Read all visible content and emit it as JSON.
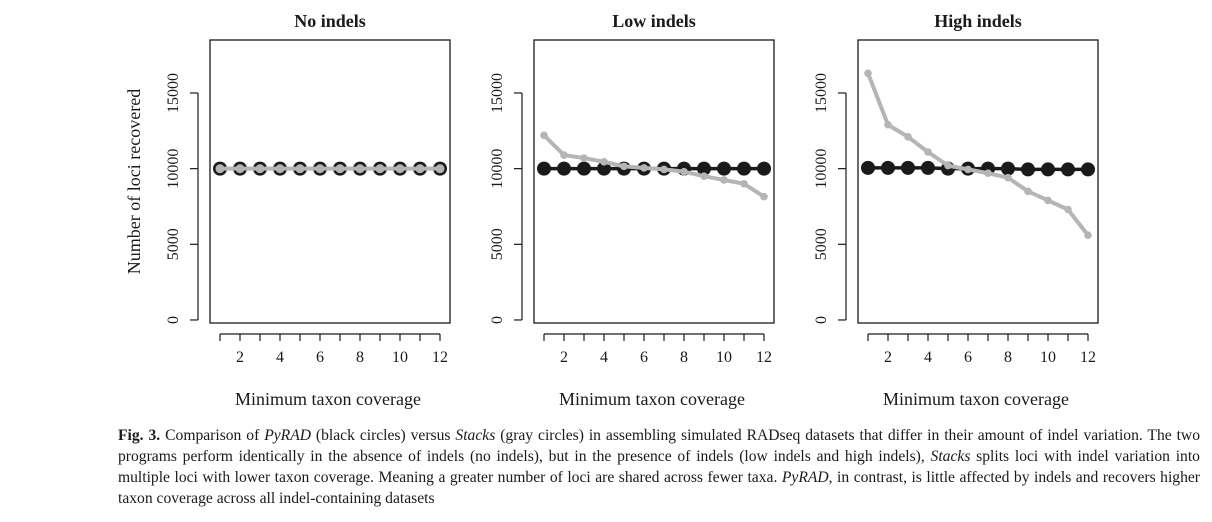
{
  "chart_data": [
    {
      "type": "line",
      "title": "No indels",
      "xlabel": "Minimum taxon coverage",
      "ylabel": "Number of loci recovered",
      "xlim": [
        0.5,
        12.5
      ],
      "ylim": [
        -200,
        18500
      ],
      "x_ticks": [
        2,
        4,
        6,
        8,
        10,
        12
      ],
      "y_ticks": [
        0,
        5000,
        10000,
        15000
      ],
      "x": [
        1,
        2,
        3,
        4,
        5,
        6,
        7,
        8,
        9,
        10,
        11,
        12
      ],
      "grid": false,
      "series": [
        {
          "name": "PyRAD",
          "color": "#1a1a1a",
          "values": [
            10000,
            10000,
            10000,
            10000,
            10000,
            10000,
            10000,
            10000,
            10000,
            10000,
            10000,
            10000
          ]
        },
        {
          "name": "Stacks",
          "color": "#b5b5b5",
          "values": [
            10000,
            10000,
            10000,
            10000,
            10000,
            10000,
            10000,
            10000,
            10000,
            10000,
            10000,
            10000
          ]
        }
      ]
    },
    {
      "type": "line",
      "title": "Low indels",
      "xlabel": "Minimum taxon coverage",
      "ylabel": "",
      "xlim": [
        0.5,
        12.5
      ],
      "ylim": [
        -200,
        18500
      ],
      "x_ticks": [
        2,
        4,
        6,
        8,
        10,
        12
      ],
      "y_ticks": [
        0,
        5000,
        10000,
        15000
      ],
      "x": [
        1,
        2,
        3,
        4,
        5,
        6,
        7,
        8,
        9,
        10,
        11,
        12
      ],
      "grid": false,
      "series": [
        {
          "name": "PyRAD",
          "color": "#1a1a1a",
          "values": [
            10000,
            10000,
            10000,
            10000,
            10000,
            10000,
            10000,
            10000,
            10000,
            10000,
            10000,
            10000
          ]
        },
        {
          "name": "Stacks",
          "color": "#b5b5b5",
          "values": [
            12200,
            10900,
            10700,
            10450,
            10150,
            10050,
            9950,
            9800,
            9500,
            9250,
            9000,
            8150
          ]
        }
      ]
    },
    {
      "type": "line",
      "title": "High indels",
      "xlabel": "Minimum taxon coverage",
      "ylabel": "",
      "xlim": [
        0.5,
        12.5
      ],
      "ylim": [
        -200,
        18500
      ],
      "x_ticks": [
        2,
        4,
        6,
        8,
        10,
        12
      ],
      "y_ticks": [
        0,
        5000,
        10000,
        15000
      ],
      "x": [
        1,
        2,
        3,
        4,
        5,
        6,
        7,
        8,
        9,
        10,
        11,
        12
      ],
      "grid": false,
      "series": [
        {
          "name": "PyRAD",
          "color": "#1a1a1a",
          "values": [
            10050,
            10050,
            10050,
            10050,
            10000,
            10000,
            10000,
            10000,
            9950,
            9950,
            9950,
            9950
          ]
        },
        {
          "name": "Stacks",
          "color": "#b5b5b5",
          "values": [
            16300,
            12900,
            12100,
            11100,
            10200,
            9950,
            9700,
            9400,
            8500,
            7900,
            7300,
            5600
          ]
        }
      ]
    }
  ],
  "caption": {
    "label": "Fig. 3.",
    "parts": [
      {
        "t": " Comparison of "
      },
      {
        "t": "PyRAD",
        "i": true
      },
      {
        "t": " (black circles) versus "
      },
      {
        "t": "Stacks",
        "i": true
      },
      {
        "t": " (gray circles) in assembling simulated RADseq datasets that differ in their amount of indel variation. The two programs perform identically in the absence of indels (no indels), but in the presence of indels (low indels and high indels), "
      },
      {
        "t": "Stacks",
        "i": true
      },
      {
        "t": " splits loci with indel variation into multiple loci with lower taxon coverage. Meaning a greater number of loci are shared across fewer taxa. "
      },
      {
        "t": "PyRAD",
        "i": true
      },
      {
        "t": ", in contrast, is little affected by indels and recovers higher taxon coverage across all indel-containing datasets"
      }
    ]
  }
}
